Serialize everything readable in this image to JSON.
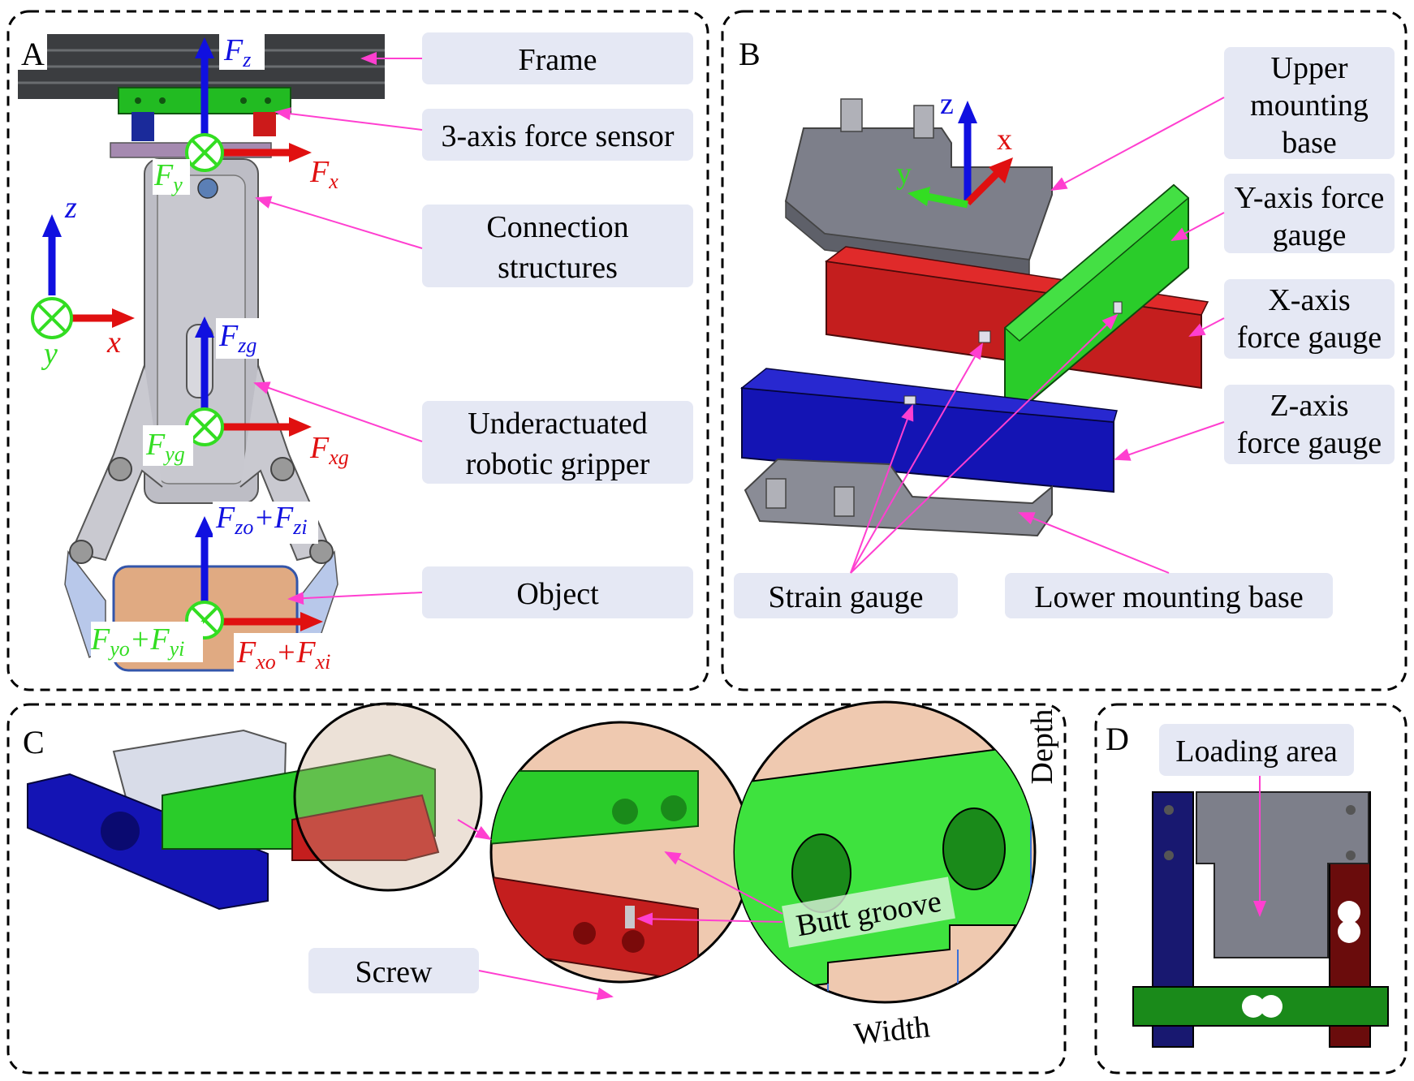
{
  "panels": {
    "a": "A",
    "b": "B",
    "c": "C",
    "d": "D"
  },
  "panel_a": {
    "labels": {
      "frame": "Frame",
      "sensor": "3-axis force sensor",
      "connection_1": "Connection",
      "connection_2": "structures",
      "gripper_1": "Underactuated",
      "gripper_2": "robotic gripper",
      "object": "Object"
    },
    "axes": {
      "z": "z",
      "x": "x",
      "y": "y"
    },
    "forces": {
      "fz": "F",
      "fz_sub": "z",
      "fx": "F",
      "fx_sub": "x",
      "fy": "F",
      "fy_sub": "y",
      "fzg": "F",
      "fzg_sub": "zg",
      "fxg": "F",
      "fxg_sub": "xg",
      "fyg": "F",
      "fyg_sub": "yg",
      "fzo": "F",
      "fzo_sub": "zo",
      "fzi": "F",
      "fzi_sub": "zi",
      "fxo": "F",
      "fxo_sub": "xo",
      "fxi": "F",
      "fxi_sub": "xi",
      "fyo": "F",
      "fyo_sub": "yo",
      "fyi": "F",
      "fyi_sub": "yi",
      "plus": "+"
    }
  },
  "panel_b": {
    "labels": {
      "upper_1": "Upper",
      "upper_2": "mounting",
      "upper_3": "base",
      "yaxis_1": "Y-axis force",
      "yaxis_2": "gauge",
      "xaxis_1": "X-axis",
      "xaxis_2": "force gauge",
      "zaxis_1": "Z-axis",
      "zaxis_2": "force gauge",
      "strain": "Strain gauge",
      "lower": "Lower mounting base"
    },
    "axes": {
      "z": "z",
      "x": "x",
      "y": "y"
    }
  },
  "panel_c": {
    "labels": {
      "screw": "Screw",
      "butt_groove": "Butt groove",
      "depth": "Depth",
      "width": "Width"
    }
  },
  "panel_d": {
    "labels": {
      "loading": "Loading area"
    }
  },
  "colors": {
    "x_axis": "#e01010",
    "y_axis": "#33dd22",
    "z_axis": "#1010e0",
    "leader": "#ff3fd0",
    "label_bg": "#e5e8f4"
  }
}
